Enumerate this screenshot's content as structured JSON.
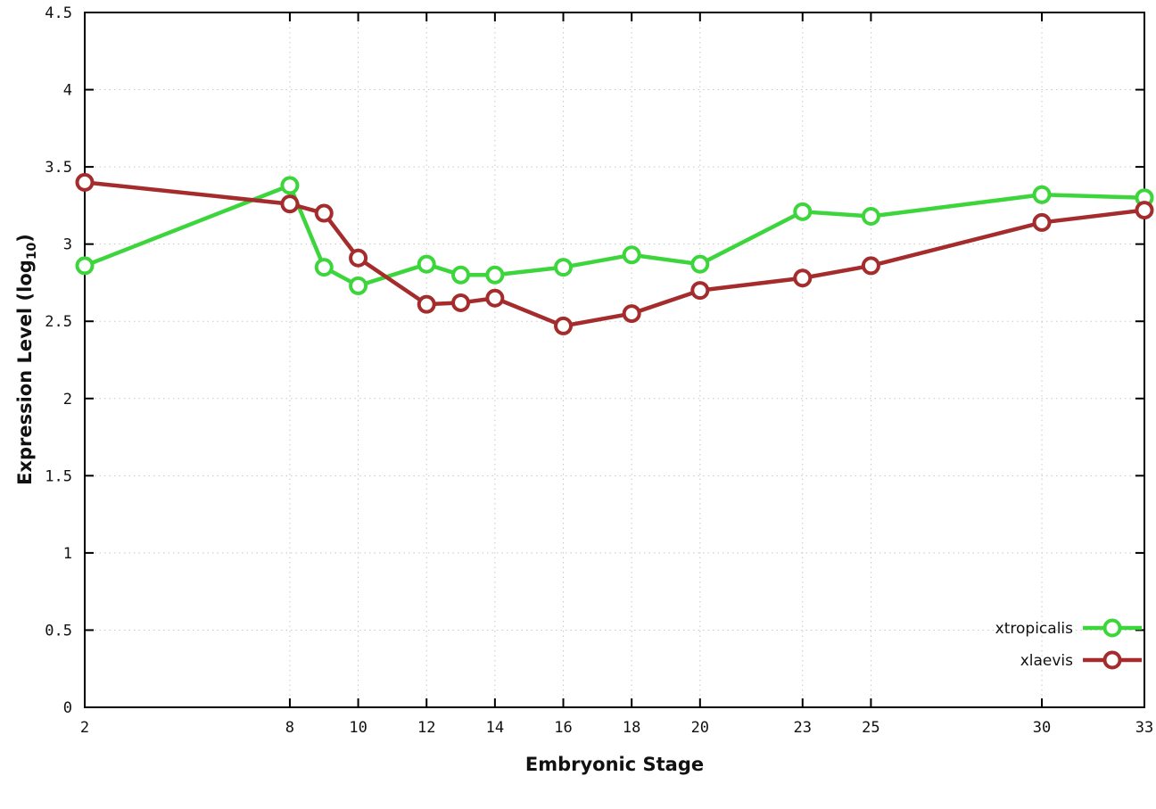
{
  "chart_data": {
    "type": "line",
    "title": "",
    "xlabel": "Embryonic Stage",
    "ylabel": "Expression Level (log10)",
    "ylabel_parts": {
      "main": "Expression Level (log",
      "sub": "10",
      "end": ")"
    },
    "xlim": [
      2,
      33
    ],
    "ylim": [
      0,
      4.5
    ],
    "grid": true,
    "legend_position": "bottom-right",
    "xticks": [
      2,
      8,
      10,
      12,
      14,
      16,
      18,
      20,
      23,
      25,
      30,
      33
    ],
    "xtick_labels": [
      "2",
      "8",
      "10",
      "12",
      "14",
      "16",
      "18",
      "20",
      "23",
      "25",
      "30",
      "33"
    ],
    "yticks": [
      0,
      0.5,
      1,
      1.5,
      2,
      2.5,
      3,
      3.5,
      4,
      4.5
    ],
    "ytick_labels": [
      "0",
      "0.5",
      "1",
      "1.5",
      "2",
      "2.5",
      "3",
      "3.5",
      "4",
      "4.5"
    ],
    "x": [
      2,
      8,
      9,
      10,
      12,
      13,
      14,
      16,
      18,
      20,
      23,
      25,
      30,
      33
    ],
    "series": [
      {
        "name": "xtropicalis",
        "color": "#3cd63c",
        "values": [
          2.86,
          3.38,
          2.85,
          2.73,
          2.87,
          2.8,
          2.8,
          2.85,
          2.93,
          2.87,
          3.21,
          3.18,
          3.32,
          3.3
        ]
      },
      {
        "name": "xlaevis",
        "color": "#a52c2c",
        "values": [
          3.4,
          3.26,
          3.2,
          2.91,
          2.61,
          2.62,
          2.65,
          2.47,
          2.55,
          2.7,
          2.78,
          2.86,
          3.14,
          3.22
        ]
      }
    ],
    "style": {
      "grid_color": "#c8c8c8",
      "border_color": "#000000",
      "background": "#ffffff",
      "line_width": 4.5,
      "marker_radius": 8.5,
      "marker_stroke": 4,
      "marker_fill": "#ffffff"
    }
  }
}
